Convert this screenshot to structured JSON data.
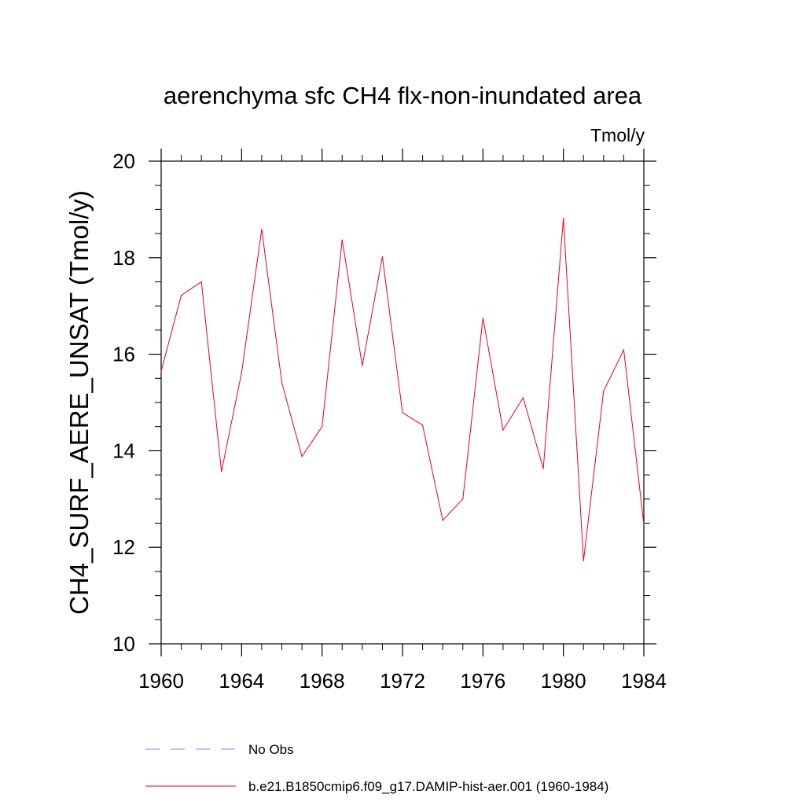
{
  "chart_data": {
    "type": "line",
    "title": "aerenchyma sfc CH4 flx-non-inundated area",
    "units": "Tmol/y",
    "ylabel": "CH4_SURF_AERE_UNSAT  (Tmol/y)",
    "xlabel": "",
    "xlim": [
      1960,
      1984
    ],
    "ylim": [
      10,
      20
    ],
    "x_ticks": [
      1960,
      1964,
      1968,
      1972,
      1976,
      1980,
      1984
    ],
    "y_ticks": [
      10,
      12,
      14,
      16,
      18,
      20
    ],
    "grid": false,
    "legend": "bottom",
    "series": [
      {
        "name": "b.e21.B1850cmip6.f09_g17.DAMIP-hist-aer.001 (1960-1984)",
        "color": "#e8001c",
        "style": "solid",
        "x": [
          1960,
          1961,
          1962,
          1963,
          1964,
          1965,
          1966,
          1967,
          1968,
          1969,
          1970,
          1971,
          1972,
          1973,
          1974,
          1975,
          1976,
          1977,
          1978,
          1979,
          1980,
          1981,
          1982,
          1983,
          1984
        ],
        "values": [
          15.65,
          17.22,
          17.5,
          13.57,
          15.62,
          18.59,
          15.41,
          13.88,
          14.5,
          18.37,
          15.76,
          18.02,
          14.79,
          14.53,
          12.56,
          13.0,
          16.75,
          14.43,
          15.1,
          13.63,
          18.82,
          11.72,
          15.24,
          16.09,
          12.47
        ]
      }
    ],
    "legend_entries": [
      {
        "label": "No Obs",
        "color": "#8a7fd0",
        "style": "dashed"
      },
      {
        "label": "b.e21.B1850cmip6.f09_g17.DAMIP-hist-aer.001 (1960-1984)",
        "color": "#e8001c",
        "style": "solid"
      }
    ]
  }
}
